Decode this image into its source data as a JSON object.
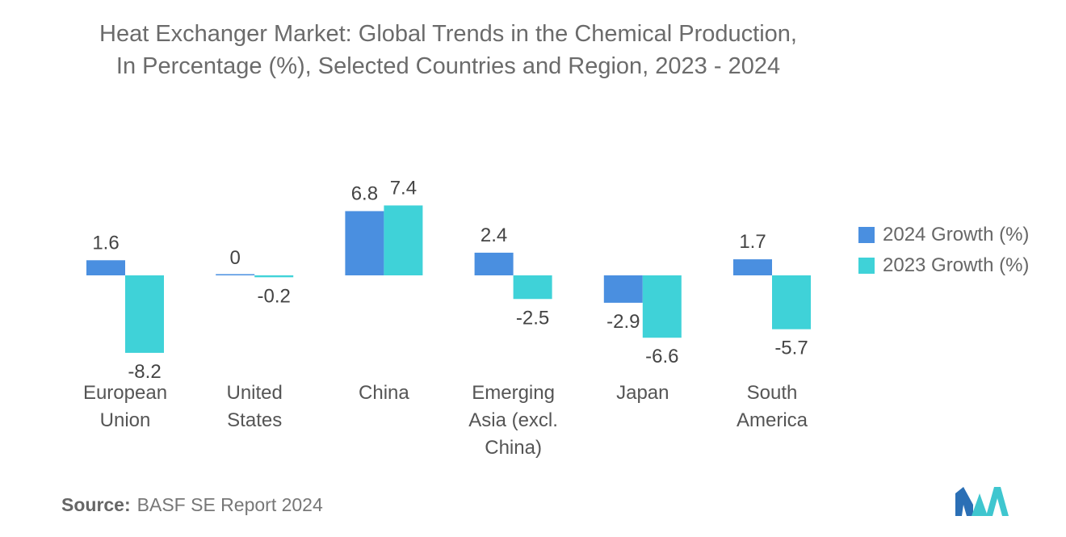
{
  "title_line1": "Heat Exchanger Market: Global Trends in the Chemical Production,",
  "title_line2": "In Percentage (%), Selected Countries and Region, 2023 - 2024",
  "chart_data": {
    "type": "bar",
    "title": "Heat Exchanger Market: Global Trends in the Chemical Production, In Percentage (%), Selected Countries and Region, 2023 - 2024",
    "xlabel": "",
    "ylabel": "",
    "grid": false,
    "legend_position": "right",
    "categories": [
      [
        "European",
        "Union"
      ],
      [
        "United",
        "States"
      ],
      [
        "China"
      ],
      [
        "Emerging",
        "Asia (excl.",
        "China)"
      ],
      [
        "Japan"
      ],
      [
        "South",
        "America"
      ]
    ],
    "series": [
      {
        "name": "2024 Growth (%)",
        "color": "#4a8fe0",
        "values": [
          1.6,
          0,
          6.8,
          2.4,
          -2.9,
          1.7
        ]
      },
      {
        "name": "2023 Growth (%)",
        "color": "#3fd2d8",
        "values": [
          -8.2,
          -0.2,
          7.4,
          -2.5,
          -6.6,
          -5.7
        ]
      }
    ]
  },
  "source_label": "Source:",
  "source_text": "BASF SE Report 2024",
  "logo": {
    "icon": "mordor-logo-icon",
    "color_left": "#2b6fb5",
    "color_right": "#3fc6cf"
  }
}
